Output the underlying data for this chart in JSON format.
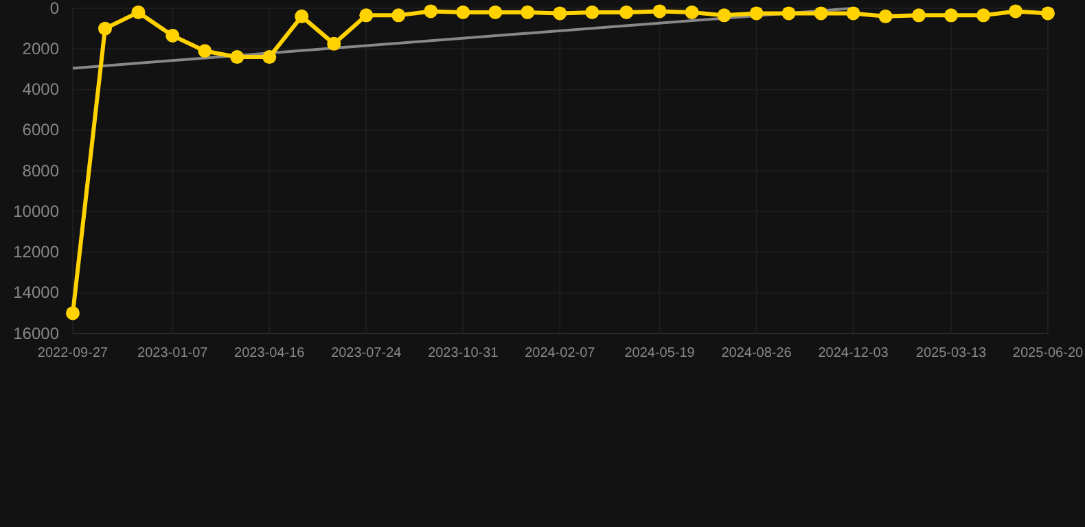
{
  "chart_data": {
    "type": "line",
    "x": [
      "2022-09-27",
      "2022-10-30",
      "2022-12-03",
      "2023-01-07",
      "2023-02-09",
      "2023-03-14",
      "2023-04-16",
      "2023-05-19",
      "2023-06-21",
      "2023-07-24",
      "2023-08-26",
      "2023-09-28",
      "2023-10-31",
      "2023-12-03",
      "2024-01-05",
      "2024-02-07",
      "2024-03-11",
      "2024-04-15",
      "2024-05-19",
      "2024-06-21",
      "2024-07-24",
      "2024-08-26",
      "2024-09-28",
      "2024-10-31",
      "2024-12-03",
      "2025-01-05",
      "2025-02-08",
      "2025-03-13",
      "2025-04-15",
      "2025-05-18",
      "2025-06-20"
    ],
    "series": [
      {
        "color": "#ffd200",
        "marker": "circle",
        "values": [
          15000,
          1000,
          200,
          1350,
          2100,
          2400,
          2400,
          400,
          1750,
          350,
          350,
          150,
          200,
          200,
          200,
          250,
          200,
          200,
          150,
          200,
          350,
          250,
          250,
          250,
          250,
          400,
          350,
          350,
          350,
          150,
          250
        ]
      },
      {
        "color": "#888888",
        "marker": "none",
        "x": [
          "2022-09-27",
          "2024-12-03"
        ],
        "values": [
          2950,
          0
        ]
      }
    ],
    "ylim": [
      16000,
      0
    ],
    "yticks": [
      0,
      2000,
      4000,
      6000,
      8000,
      10000,
      12000,
      14000,
      16000
    ],
    "xlim": [
      "2022-09-27",
      "2025-06-20"
    ],
    "xticks": [
      "2022-09-27",
      "2023-01-07",
      "2023-04-16",
      "2023-07-24",
      "2023-10-31",
      "2024-02-07",
      "2024-05-19",
      "2024-08-26",
      "2024-12-03",
      "2025-03-13",
      "2025-06-20"
    ],
    "grid": true,
    "line_style": "solid"
  }
}
